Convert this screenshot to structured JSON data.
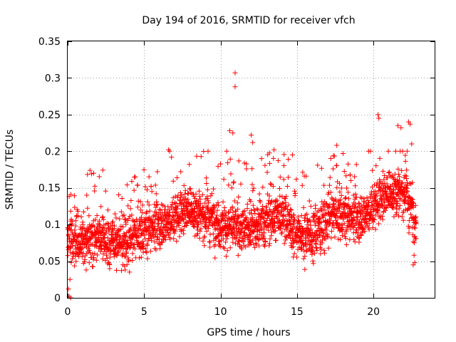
{
  "chart_data": {
    "type": "scatter",
    "title": "Day 194 of 2016, SRMTID for receiver vfch",
    "xlabel": "GPS time / hours",
    "ylabel": "SRMTID / TECUs",
    "xlim": [
      0,
      24
    ],
    "ylim": [
      0,
      0.35
    ],
    "xticks": [
      0,
      5,
      10,
      15,
      20
    ],
    "xtick_labels": [
      "0",
      "5",
      "10",
      "15",
      "20"
    ],
    "yticks": [
      0,
      0.05,
      0.1,
      0.15,
      0.2,
      0.25,
      0.3,
      0.35
    ],
    "ytick_labels": [
      "0",
      "0.05",
      "0.1",
      "0.15",
      "0.2",
      "0.25",
      "0.3",
      "0.35"
    ],
    "grid": true,
    "marker": "plus",
    "marker_color": "#ff0000",
    "data_range_x": [
      0,
      22.8
    ],
    "trend": [
      [
        0.0,
        0.08
      ],
      [
        1.0,
        0.08
      ],
      [
        2.0,
        0.082
      ],
      [
        3.0,
        0.078
      ],
      [
        4.0,
        0.072
      ],
      [
        5.0,
        0.09
      ],
      [
        6.0,
        0.1
      ],
      [
        7.0,
        0.11
      ],
      [
        8.0,
        0.118
      ],
      [
        9.0,
        0.115
      ],
      [
        10.0,
        0.1
      ],
      [
        11.0,
        0.095
      ],
      [
        12.0,
        0.095
      ],
      [
        13.0,
        0.105
      ],
      [
        14.0,
        0.118
      ],
      [
        15.0,
        0.085
      ],
      [
        16.0,
        0.088
      ],
      [
        17.0,
        0.105
      ],
      [
        18.0,
        0.112
      ],
      [
        19.0,
        0.108
      ],
      [
        20.0,
        0.125
      ],
      [
        21.0,
        0.14
      ],
      [
        22.0,
        0.15
      ],
      [
        22.8,
        0.1
      ]
    ],
    "notable_points": [
      [
        0.05,
        0.012
      ],
      [
        0.1,
        0.002
      ],
      [
        0.15,
        0.025
      ],
      [
        0.2,
        0.0
      ],
      [
        10.95,
        0.307
      ],
      [
        10.95,
        0.288
      ],
      [
        10.6,
        0.228
      ],
      [
        10.8,
        0.225
      ],
      [
        12.0,
        0.222
      ],
      [
        12.1,
        0.212
      ],
      [
        6.6,
        0.202
      ],
      [
        10.4,
        0.2
      ],
      [
        13.5,
        0.202
      ],
      [
        14.7,
        0.195
      ],
      [
        17.6,
        0.208
      ],
      [
        20.3,
        0.25
      ],
      [
        20.35,
        0.245
      ],
      [
        21.6,
        0.235
      ],
      [
        21.8,
        0.232
      ],
      [
        22.3,
        0.24
      ],
      [
        22.4,
        0.237
      ],
      [
        22.5,
        0.21
      ],
      [
        22.7,
        0.048
      ],
      [
        22.6,
        0.045
      ]
    ]
  }
}
